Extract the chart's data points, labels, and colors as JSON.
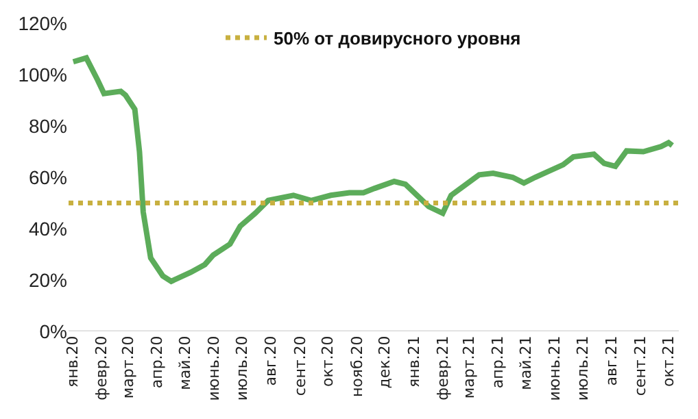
{
  "chart_data": {
    "type": "line",
    "x": [
      "2020-01-02",
      "2020-01-16",
      "2020-01-28",
      "2020-02-04",
      "2020-02-22",
      "2020-02-27",
      "2020-03-08",
      "2020-03-13",
      "2020-03-17",
      "2020-03-25",
      "2020-04-07",
      "2020-04-16",
      "2020-05-07",
      "2020-05-22",
      "2020-05-31",
      "2020-06-18",
      "2020-06-29",
      "2020-07-15",
      "2020-07-29",
      "2020-08-25",
      "2020-09-13",
      "2020-10-04",
      "2020-10-24",
      "2020-11-08",
      "2020-11-20",
      "2020-12-11",
      "2020-12-23",
      "2021-01-17",
      "2021-02-01",
      "2021-02-10",
      "2021-03-12",
      "2021-03-27",
      "2021-04-17",
      "2021-04-29",
      "2021-05-11",
      "2021-06-10",
      "2021-06-21",
      "2021-07-13",
      "2021-07-24",
      "2021-08-05",
      "2021-08-17",
      "2021-09-04",
      "2021-09-23",
      "2021-10-01",
      "2021-10-05"
    ],
    "series": [
      {
        "color": "#5cac5a",
        "values": [
          105,
          106.5,
          98,
          92.6,
          93.5,
          92,
          86.5,
          70,
          46.5,
          28.6,
          21.6,
          19.5,
          23,
          26,
          29.7,
          34,
          41,
          46,
          51,
          53,
          51,
          53,
          54,
          54,
          55.7,
          58.4,
          57.3,
          48.6,
          46,
          53,
          61,
          61.6,
          60,
          57.8,
          60,
          64.9,
          68,
          69,
          65.4,
          64.3,
          70.3,
          70,
          72,
          73.5,
          72.4
        ]
      }
    ],
    "xlim": [
      "2019-12-28",
      "2021-10-12"
    ],
    "xticks": [
      {
        "value": "2020-01-01",
        "label": "янв.20"
      },
      {
        "value": "2020-02-01",
        "label": "февр.20"
      },
      {
        "value": "2020-03-01",
        "label": "март.20"
      },
      {
        "value": "2020-04-01",
        "label": "апр.20"
      },
      {
        "value": "2020-05-01",
        "label": "май.20"
      },
      {
        "value": "2020-06-01",
        "label": "июнь.20"
      },
      {
        "value": "2020-07-01",
        "label": "июль.20"
      },
      {
        "value": "2020-08-01",
        "label": "авг.20"
      },
      {
        "value": "2020-09-01",
        "label": "сент.20"
      },
      {
        "value": "2020-10-01",
        "label": "окт.20"
      },
      {
        "value": "2020-11-01",
        "label": "нояб.20"
      },
      {
        "value": "2020-12-01",
        "label": "дек.20"
      },
      {
        "value": "2021-01-01",
        "label": "янв.21"
      },
      {
        "value": "2021-02-01",
        "label": "февр.21"
      },
      {
        "value": "2021-03-01",
        "label": "март.21"
      },
      {
        "value": "2021-04-01",
        "label": "апр.21"
      },
      {
        "value": "2021-05-01",
        "label": "май.21"
      },
      {
        "value": "2021-06-01",
        "label": "июнь.21"
      },
      {
        "value": "2021-07-01",
        "label": "июль.21"
      },
      {
        "value": "2021-08-01",
        "label": "авг.21"
      },
      {
        "value": "2021-09-01",
        "label": "сент.21"
      },
      {
        "value": "2021-10-01",
        "label": "окт.21"
      }
    ],
    "ylim": [
      0,
      120
    ],
    "yticks": [
      {
        "value": 0,
        "label": "0%"
      },
      {
        "value": 20,
        "label": "20%"
      },
      {
        "value": 40,
        "label": "40%"
      },
      {
        "value": 60,
        "label": "60%"
      },
      {
        "value": 80,
        "label": "80%"
      },
      {
        "value": 100,
        "label": "100%"
      },
      {
        "value": 120,
        "label": "120%"
      }
    ],
    "ref_lines": [
      {
        "axis": "y",
        "value": 50,
        "label": "50% от довирусного уровня",
        "color": "#c8b040",
        "line_style": "dotted"
      }
    ],
    "grid": false,
    "legend": "top",
    "marker": "none",
    "line_style": "solid"
  }
}
